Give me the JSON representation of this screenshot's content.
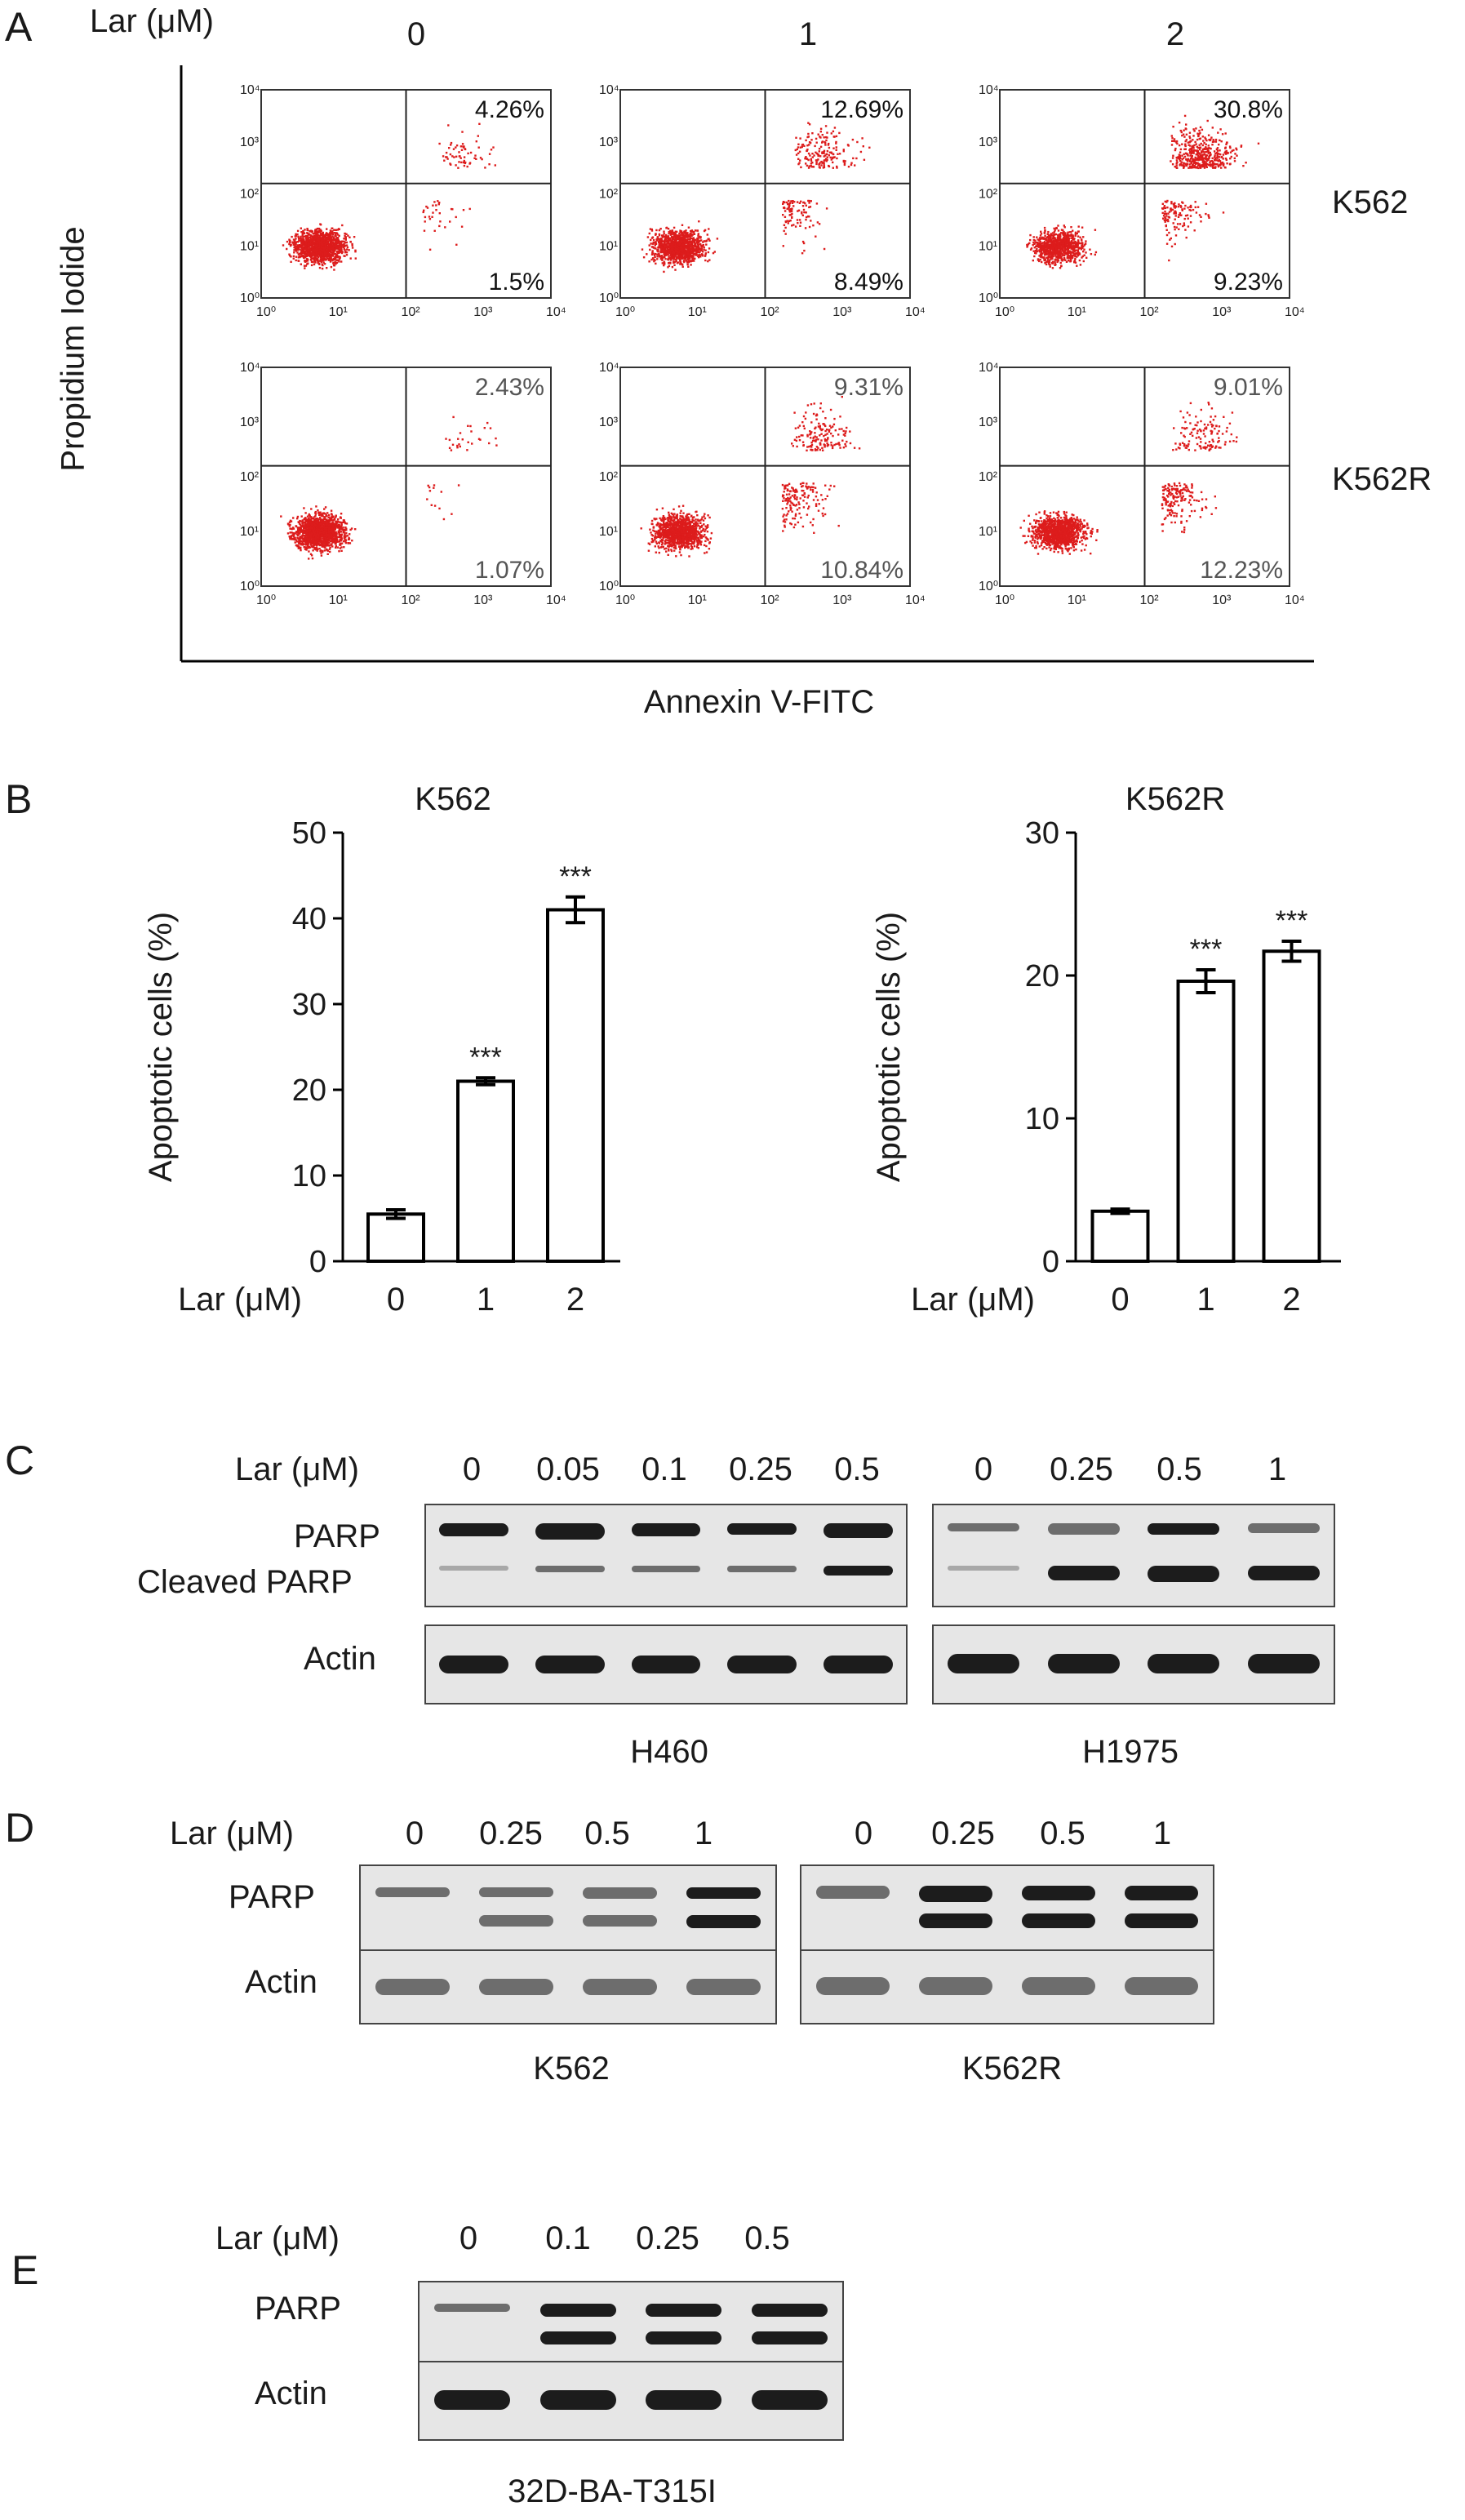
{
  "panelA": {
    "letter": "A",
    "lar_label": "Lar (μM)",
    "doses": [
      "0",
      "1",
      "2"
    ],
    "rows": [
      {
        "name": "K562",
        "upper_right": [
          "4.26%",
          "12.69%",
          "30.8%"
        ],
        "lower_right": [
          "1.5%",
          "8.49%",
          "9.23%"
        ]
      },
      {
        "name": "K562R",
        "upper_right": [
          "2.43%",
          "9.31%",
          "9.01%"
        ],
        "lower_right": [
          "1.07%",
          "10.84%",
          "12.23%"
        ]
      }
    ],
    "y_axis_label": "Propidium Iodide",
    "x_axis_label": "Annexin V-FITC",
    "tick_labels": [
      "10⁰",
      "10¹",
      "10²",
      "10³",
      "10⁴"
    ],
    "dot_color": "#dd1c1c"
  },
  "panelB": {
    "letter": "B",
    "lar_label": "Lar (μM)",
    "ylabel": "Apoptotic cells (%)",
    "significance": "***"
  },
  "chart_data": [
    {
      "type": "bar",
      "title": "K562",
      "categories": [
        "0",
        "1",
        "2"
      ],
      "values": [
        5.5,
        21,
        41
      ],
      "errors": [
        0.5,
        0.4,
        1.5
      ],
      "significance": [
        "",
        "***",
        "***"
      ],
      "xlabel": "Lar (μM)",
      "ylabel": "Apoptotic cells (%)",
      "ylim": [
        0,
        50
      ],
      "yticks": [
        0,
        10,
        20,
        30,
        40,
        50
      ]
    },
    {
      "type": "bar",
      "title": "K562R",
      "categories": [
        "0",
        "1",
        "2"
      ],
      "values": [
        3.5,
        19.6,
        21.7
      ],
      "errors": [
        0.15,
        0.8,
        0.7
      ],
      "significance": [
        "",
        "***",
        "***"
      ],
      "xlabel": "Lar (μM)",
      "ylabel": "Apoptotic cells (%)",
      "ylim": [
        0,
        30
      ],
      "yticks": [
        0,
        10,
        20,
        30
      ]
    }
  ],
  "panelC": {
    "letter": "C",
    "lar_label": "Lar (μM)",
    "doses_left": [
      "0",
      "0.05",
      "0.1",
      "0.25",
      "0.5"
    ],
    "doses_right": [
      "0",
      "0.25",
      "0.5",
      "1"
    ],
    "parp_label": "PARP",
    "cleaved_label": "Cleaved PARP",
    "actin_label": "Actin",
    "cell_left": "H460",
    "cell_right": "H1975"
  },
  "panelD": {
    "letter": "D",
    "lar_label": "Lar (μM)",
    "doses_left": [
      "0",
      "0.25",
      "0.5",
      "1"
    ],
    "doses_right": [
      "0",
      "0.25",
      "0.5",
      "1"
    ],
    "parp_label": "PARP",
    "actin_label": "Actin",
    "cell_left": "K562",
    "cell_right": "K562R"
  },
  "panelE": {
    "letter": "E",
    "lar_label": "Lar (μM)",
    "doses": [
      "0",
      "0.1",
      "0.25",
      "0.5"
    ],
    "parp_label": "PARP",
    "actin_label": "Actin",
    "cell": "32D-BA-T315I"
  }
}
